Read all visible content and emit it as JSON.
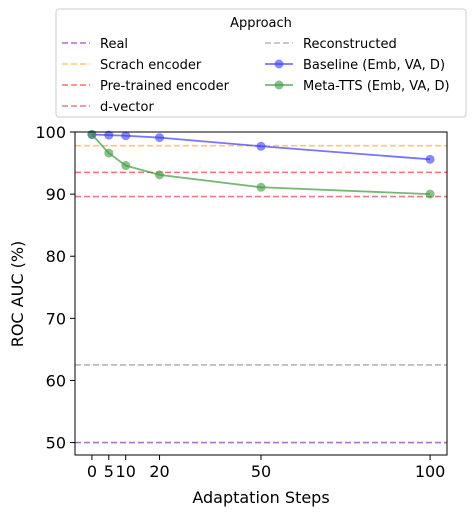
{
  "chart_data": {
    "type": "line",
    "xlabel": "Adaptation Steps",
    "ylabel": "ROC AUC (%)",
    "xlim": [
      -5,
      105
    ],
    "ylim": [
      48,
      100
    ],
    "xticks": [
      0,
      5,
      10,
      20,
      50,
      100
    ],
    "yticks": [
      50,
      60,
      70,
      80,
      90,
      100
    ],
    "grid": false,
    "legend": {
      "title": "Approach",
      "placement": "top (above plot, two columns)",
      "columns": 2
    },
    "reference_lines": [
      {
        "name": "Real",
        "value": 50.0,
        "color": "#9b3fb5"
      },
      {
        "name": "Scrach encoder",
        "value": 97.8,
        "color": "#ffb44d"
      },
      {
        "name": "Pre-trained encoder",
        "value": 93.5,
        "color": "#ff4040"
      },
      {
        "name": "d-vector",
        "value": 89.6,
        "color": "#d9535f"
      },
      {
        "name": "Reconstructed",
        "value": 62.5,
        "color": "#9e9e9e"
      }
    ],
    "series": [
      {
        "name": "Baseline (Emb, VA, D)",
        "color": "#3a3aff",
        "x": [
          0,
          5,
          10,
          20,
          50,
          100
        ],
        "y": [
          99.6,
          99.5,
          99.4,
          99.1,
          97.7,
          95.6
        ]
      },
      {
        "name": "Meta-TTS (Emb, VA, D)",
        "color": "#3a9a3a",
        "x": [
          0,
          5,
          10,
          20,
          50,
          100
        ],
        "y": [
          99.6,
          96.6,
          94.6,
          93.1,
          91.1,
          90.0
        ]
      }
    ]
  }
}
